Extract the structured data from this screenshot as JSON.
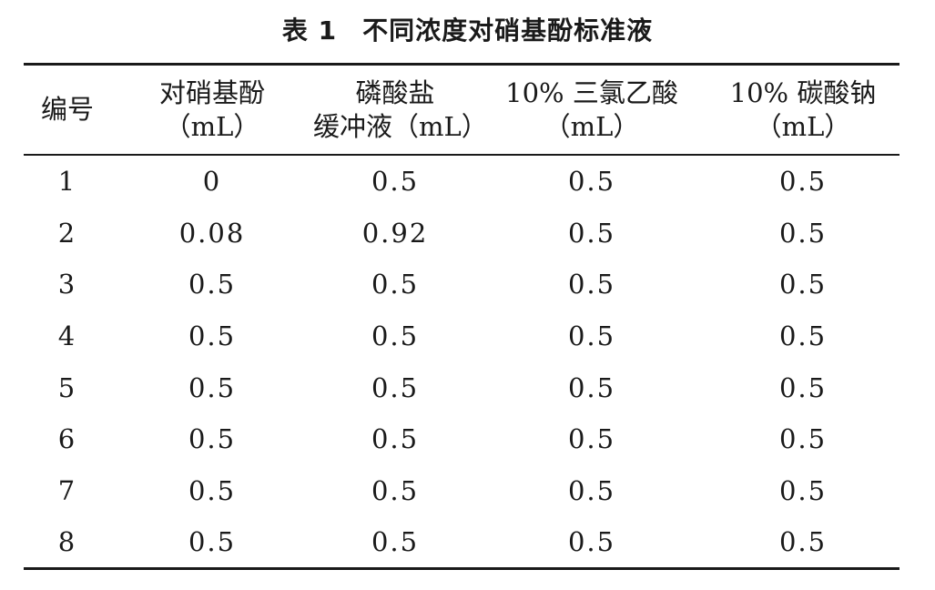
{
  "caption": {
    "number": "表 1",
    "title": "不同浓度对硝基酚标准液"
  },
  "table": {
    "headers": [
      {
        "line1": "编号",
        "line2": ""
      },
      {
        "line1": "对硝基酚",
        "line2": "（mL）"
      },
      {
        "line1": "磷酸盐",
        "line2": "缓冲液（mL）"
      },
      {
        "line1": "10% 三氯乙酸",
        "line2": "（mL）"
      },
      {
        "line1": "10% 碳酸钠",
        "line2": "（mL）"
      }
    ],
    "rows": [
      [
        "1",
        "0",
        "0.5",
        "0.5",
        "0.5"
      ],
      [
        "2",
        "0.08",
        "0.92",
        "0.5",
        "0.5"
      ],
      [
        "3",
        "0.5",
        "0.5",
        "0.5",
        "0.5"
      ],
      [
        "4",
        "0.5",
        "0.5",
        "0.5",
        "0.5"
      ],
      [
        "5",
        "0.5",
        "0.5",
        "0.5",
        "0.5"
      ],
      [
        "6",
        "0.5",
        "0.5",
        "0.5",
        "0.5"
      ],
      [
        "7",
        "0.5",
        "0.5",
        "0.5",
        "0.5"
      ],
      [
        "8",
        "0.5",
        "0.5",
        "0.5",
        "0.5"
      ]
    ]
  }
}
